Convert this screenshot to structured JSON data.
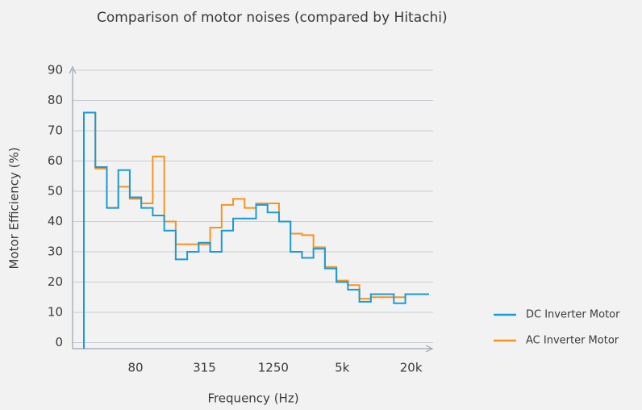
{
  "chart_data": {
    "type": "step",
    "title": "Comparison of motor noises (compared by Hitachi)",
    "xlabel": "Frequency (Hz)",
    "ylabel": "Motor Efficiency (%)",
    "categories": [
      null,
      null,
      null,
      null,
      "80",
      null,
      null,
      null,
      null,
      null,
      "315",
      null,
      null,
      null,
      null,
      null,
      "1250",
      null,
      null,
      null,
      null,
      null,
      "5k",
      null,
      null,
      null,
      null,
      null,
      "20k",
      null
    ],
    "series": [
      {
        "name": "AC Inverter Motor",
        "color": "#f7941d",
        "values": [
          76,
          57.5,
          44.5,
          51.5,
          47.5,
          46,
          61.5,
          40,
          32.5,
          32.5,
          32.5,
          38,
          45.5,
          47.5,
          44.5,
          46,
          46,
          40,
          36,
          35.5,
          31.5,
          25,
          20.5,
          19,
          14.5,
          15,
          15,
          15,
          null,
          null
        ]
      },
      {
        "name": "DC Inverter Motor",
        "color": "#1a9bd7",
        "values": [
          76,
          58,
          44.5,
          57,
          48,
          44.5,
          42,
          37,
          27.5,
          30,
          33,
          30,
          37,
          41,
          41,
          45.5,
          43,
          40,
          30,
          28,
          31,
          24.5,
          20,
          17.5,
          13.5,
          16,
          16,
          13,
          16,
          16
        ]
      }
    ],
    "ylim": [
      -2,
      90
    ],
    "yticks": [
      0,
      10,
      20,
      30,
      40,
      50,
      60,
      70,
      80,
      90
    ],
    "grid": true,
    "legend": "right"
  }
}
